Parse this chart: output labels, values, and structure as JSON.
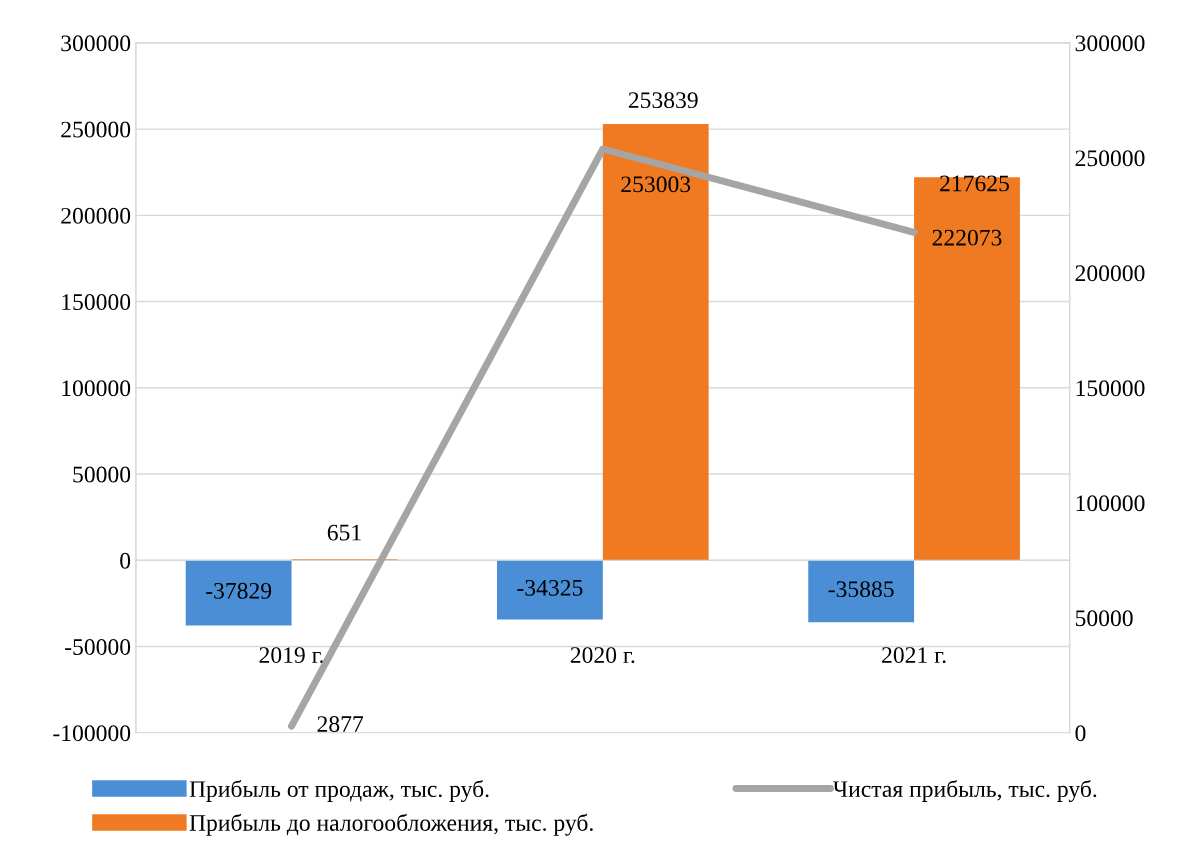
{
  "chart_data": {
    "type": "bar",
    "categories": [
      "2019 г.",
      "2020 г.",
      "2021 г."
    ],
    "series": [
      {
        "name": "Прибыль от продаж, тыс. руб.",
        "color": "#4a8fd6",
        "values": [
          -37829,
          -34325,
          -35885
        ]
      },
      {
        "name": "Прибыль до налогообложения, тыс. руб.",
        "color": "#f07a22",
        "values": [
          651,
          253003,
          222073
        ]
      },
      {
        "name": "Чистая прибыль, тыс. руб.",
        "type": "line",
        "axis": "y2",
        "color": "#a5a5a5",
        "values": [
          2877,
          253839,
          217625
        ]
      }
    ],
    "ylim": [
      -100000,
      300000
    ],
    "yticks": [
      -100000,
      -50000,
      0,
      50000,
      100000,
      150000,
      200000,
      250000,
      300000
    ],
    "y2lim": [
      0,
      300000
    ],
    "y2ticks": [
      0,
      50000,
      100000,
      150000,
      200000,
      250000,
      300000
    ],
    "grid": "y",
    "legend": "bottom",
    "data_labels": true,
    "marker": "none",
    "line_style": "solid"
  }
}
